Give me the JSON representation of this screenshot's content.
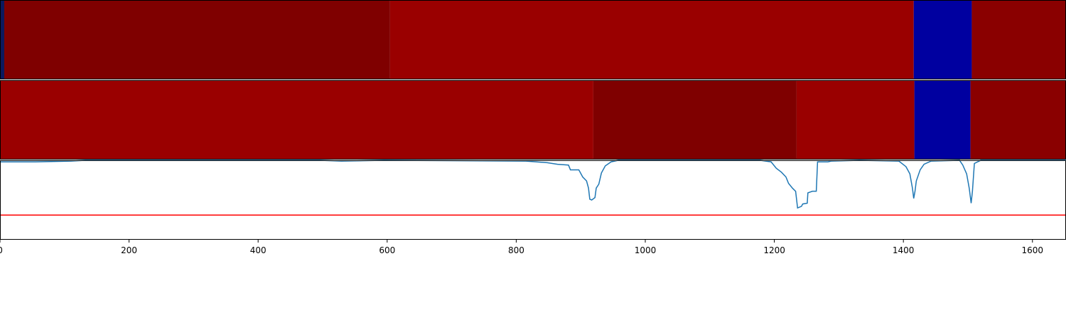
{
  "chart_data": [
    {
      "type": "heatmap",
      "xlim": [
        0,
        1652
      ],
      "segments": [
        {
          "start": 0,
          "end": 6.6,
          "color": "#0b1a5e"
        },
        {
          "start": 6.6,
          "end": 604.5,
          "color": "#7f0000"
        },
        {
          "start": 604.5,
          "end": 1416,
          "color": "#9a0000"
        },
        {
          "start": 1416,
          "end": 1506,
          "color": "#0000a0"
        },
        {
          "start": 1506,
          "end": 1652,
          "color": "#8a0000"
        }
      ]
    },
    {
      "type": "heatmap",
      "xlim": [
        0,
        1652
      ],
      "segments": [
        {
          "start": 0,
          "end": 919.5,
          "color": "#9a0000"
        },
        {
          "start": 919.5,
          "end": 1234.5,
          "color": "#7f0000"
        },
        {
          "start": 1234.5,
          "end": 1417,
          "color": "#9a0000"
        },
        {
          "start": 1417,
          "end": 1504,
          "color": "#0000a0"
        },
        {
          "start": 1504,
          "end": 1652,
          "color": "#8a0000"
        }
      ]
    },
    {
      "type": "line",
      "xlim": [
        0,
        1652
      ],
      "ylim": [
        0,
        1
      ],
      "xticks": [
        0,
        200,
        400,
        600,
        800,
        1000,
        1200,
        1400,
        1600
      ],
      "series": [
        {
          "color": "#1f77b4",
          "x": [
            0,
            55,
            110,
            132,
            496,
            529,
            595,
            815,
            848,
            864,
            881,
            884,
            897,
            903,
            909,
            912,
            914,
            917,
            922,
            924,
            928,
            932,
            938,
            947,
            958,
            1178,
            1195,
            1203,
            1211,
            1218,
            1222,
            1228,
            1233,
            1236,
            1242,
            1244,
            1251,
            1252,
            1259,
            1265,
            1267,
            1283,
            1288,
            1332,
            1393,
            1404,
            1410,
            1414,
            1416,
            1418,
            1420,
            1426,
            1432,
            1443,
            1487,
            1492,
            1498,
            1502,
            1505,
            1507,
            1510,
            1520,
            1652
          ],
          "values": [
            0.98,
            0.98,
            0.99,
            1,
            1,
            0.99,
            1,
            0.99,
            0.97,
            0.95,
            0.94,
            0.88,
            0.88,
            0.79,
            0.74,
            0.65,
            0.51,
            0.5,
            0.53,
            0.65,
            0.7,
            0.84,
            0.93,
            0.98,
            1,
            1,
            0.98,
            0.9,
            0.85,
            0.79,
            0.71,
            0.65,
            0.61,
            0.4,
            0.42,
            0.45,
            0.46,
            0.59,
            0.61,
            0.61,
            0.98,
            0.98,
            0.99,
            1,
            0.99,
            0.92,
            0.83,
            0.65,
            0.52,
            0.61,
            0.74,
            0.88,
            0.95,
            0.99,
            1,
            0.94,
            0.83,
            0.65,
            0.46,
            0.61,
            0.96,
            1,
            1
          ]
        }
      ],
      "hline": {
        "value": 0.31,
        "color": "#ff0000"
      }
    }
  ]
}
